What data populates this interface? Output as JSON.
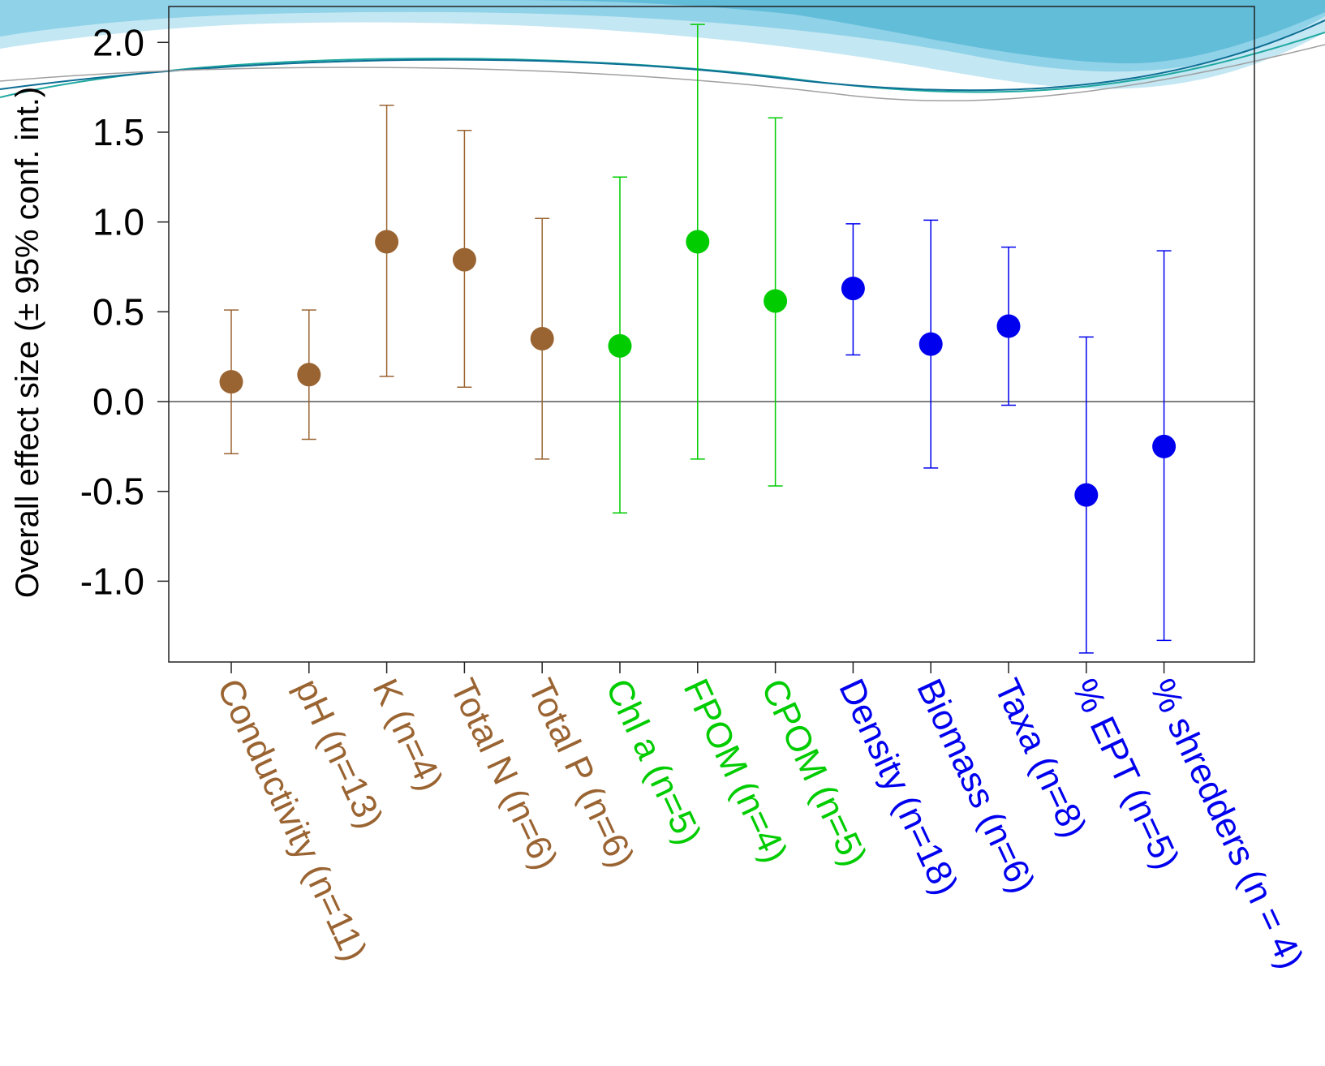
{
  "chart_data": {
    "type": "scatter",
    "title": "",
    "ylabel": "Overall effect size (± 95% conf. int.)",
    "xlabel": "",
    "ylim": [
      -1.45,
      2.2
    ],
    "yticks": [
      "2.0",
      "1.5",
      "1.0",
      "0.5",
      "0.0",
      "-0.5",
      "-1.0"
    ],
    "ytick_values": [
      2.0,
      1.5,
      1.0,
      0.5,
      0.0,
      -0.5,
      -1.0
    ],
    "reference_line": 0.0,
    "grid": false,
    "colors": {
      "physicochemical": "#9a6432",
      "resources": "#00cc00",
      "invertebrates": "#0000ee",
      "background_waves": [
        "#4fb3d3",
        "#7fd0e8",
        "#1fa88f",
        "#0d6e94"
      ]
    },
    "categories": [
      "Conductivity (n=11)",
      "pH (n=13)",
      "K (n=4)",
      "Total N (n=6)",
      "Total P (n=6)",
      "Chl a (n=5)",
      "FPOM (n=4)",
      "CPOM (n=5)",
      "Density (n=18)",
      "Biomass (n=6)",
      "Taxa (n=8)",
      "% EPT (n=5)",
      "% shredders (n = 4)"
    ],
    "points": [
      {
        "label": "Conductivity (n=11)",
        "group": "physicochemical",
        "value": 0.11,
        "lower": -0.29,
        "upper": 0.51
      },
      {
        "label": "pH (n=13)",
        "group": "physicochemical",
        "value": 0.15,
        "lower": -0.21,
        "upper": 0.51
      },
      {
        "label": "K (n=4)",
        "group": "physicochemical",
        "value": 0.89,
        "lower": 0.14,
        "upper": 1.65
      },
      {
        "label": "Total N (n=6)",
        "group": "physicochemical",
        "value": 0.79,
        "lower": 0.08,
        "upper": 1.51
      },
      {
        "label": "Total P (n=6)",
        "group": "physicochemical",
        "value": 0.35,
        "lower": -0.32,
        "upper": 1.02
      },
      {
        "label": "Chl a (n=5)",
        "group": "resources",
        "value": 0.31,
        "lower": -0.62,
        "upper": 1.25
      },
      {
        "label": "FPOM (n=4)",
        "group": "resources",
        "value": 0.89,
        "lower": -0.32,
        "upper": 2.1
      },
      {
        "label": "CPOM (n=5)",
        "group": "resources",
        "value": 0.56,
        "lower": -0.47,
        "upper": 1.58
      },
      {
        "label": "Density (n=18)",
        "group": "invertebrates",
        "value": 0.63,
        "lower": 0.26,
        "upper": 0.99
      },
      {
        "label": "Biomass (n=6)",
        "group": "invertebrates",
        "value": 0.32,
        "lower": -0.37,
        "upper": 1.01
      },
      {
        "label": "Taxa (n=8)",
        "group": "invertebrates",
        "value": 0.42,
        "lower": -0.02,
        "upper": 0.86
      },
      {
        "label": "% EPT (n=5)",
        "group": "invertebrates",
        "value": -0.52,
        "lower": -1.4,
        "upper": 0.36
      },
      {
        "label": "% shredders (n = 4)",
        "group": "invertebrates",
        "value": -0.25,
        "lower": -1.33,
        "upper": 0.84
      }
    ]
  }
}
